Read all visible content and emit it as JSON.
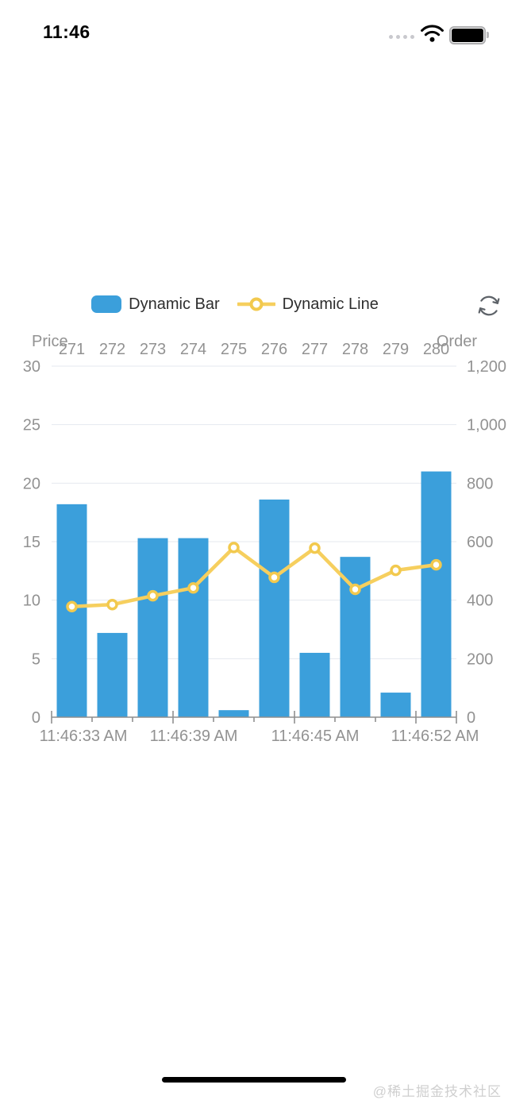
{
  "status_bar": {
    "time": "11:46"
  },
  "legend": {
    "items": [
      {
        "label": "Dynamic Bar"
      },
      {
        "label": "Dynamic Line"
      }
    ]
  },
  "toolbar": {
    "refresh_icon": "circular-arrows"
  },
  "colors": {
    "bar": "#3B9FDB",
    "line": "#F6CF5E",
    "line_marker_stroke": "#F2C94E",
    "grid": "#E4E8EF",
    "axis_line": "#8F8F8F",
    "axis_text": "#929292",
    "legend_text": "#2E2E2E",
    "watermark": "#CFCFCF"
  },
  "chart_data": {
    "type": "bar",
    "categories": [
      "271",
      "272",
      "273",
      "274",
      "275",
      "276",
      "277",
      "278",
      "279",
      "280"
    ],
    "series": [
      {
        "name": "Dynamic Bar",
        "type": "bar",
        "y_axis": "left",
        "values": [
          18.2,
          7.2,
          15.3,
          15.3,
          0.6,
          18.6,
          5.5,
          13.7,
          2.1,
          21.0
        ]
      },
      {
        "name": "Dynamic Line",
        "type": "line",
        "y_axis": "right",
        "values": [
          378,
          385,
          415,
          442,
          580,
          478,
          578,
          437,
          502,
          521
        ]
      }
    ],
    "left_axis": {
      "name": "Price",
      "min": 0,
      "max": 30,
      "tick_values": [
        0,
        5,
        10,
        15,
        20,
        25,
        30
      ],
      "tick_labels": [
        "0",
        "5",
        "10",
        "15",
        "20",
        "25",
        "30"
      ]
    },
    "right_axis": {
      "name": "Order",
      "min": 0,
      "max": 1200,
      "tick_values": [
        0,
        200,
        400,
        600,
        800,
        1000,
        1200
      ],
      "tick_labels": [
        "0",
        "200",
        "400",
        "600",
        "800",
        "1,000",
        "1,200"
      ]
    },
    "x_axis_time_labels": [
      "11:46:33 AM",
      "11:46:39 AM",
      "11:46:45 AM",
      "11:46:52 AM"
    ],
    "grid": true,
    "legend_position": "top"
  },
  "watermark": "@稀土掘金技术社区"
}
